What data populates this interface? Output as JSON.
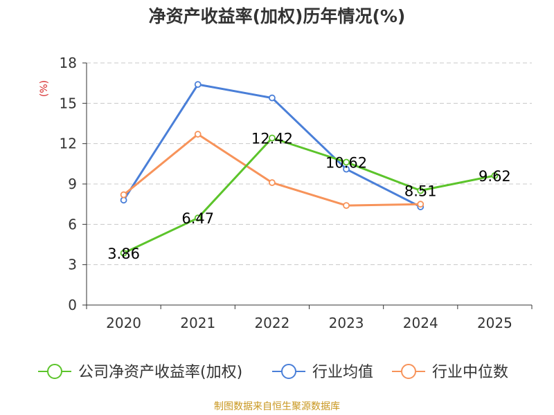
{
  "chart_data": {
    "type": "line",
    "title": "净资产收益率(加权)历年情况(%)",
    "ylabel": "(%)",
    "xlabel": "",
    "ylim": [
      0,
      18
    ],
    "yticks": [
      0,
      3,
      6,
      9,
      12,
      15,
      18
    ],
    "categories": [
      "2020",
      "2021",
      "2022",
      "2023",
      "2024",
      "2025"
    ],
    "grid": true,
    "legend_position": "bottom",
    "series": [
      {
        "name": "公司净资产收益率(加权)",
        "color": "#5cc42b",
        "values": [
          3.86,
          6.47,
          12.42,
          10.62,
          8.51,
          9.62
        ],
        "labels": [
          "3.86",
          "6.47",
          "12.42",
          "10.62",
          "8.51",
          "9.62"
        ],
        "show_labels": true
      },
      {
        "name": "行业均值",
        "color": "#4a7fd8",
        "values": [
          7.8,
          16.4,
          15.4,
          10.1,
          7.3,
          null
        ],
        "show_labels": false
      },
      {
        "name": "行业中位数",
        "color": "#f7935a",
        "values": [
          8.2,
          12.7,
          9.1,
          7.4,
          7.5,
          null
        ],
        "show_labels": false
      }
    ]
  },
  "footer": {
    "source": "制图数据来自恒生聚源数据库"
  }
}
